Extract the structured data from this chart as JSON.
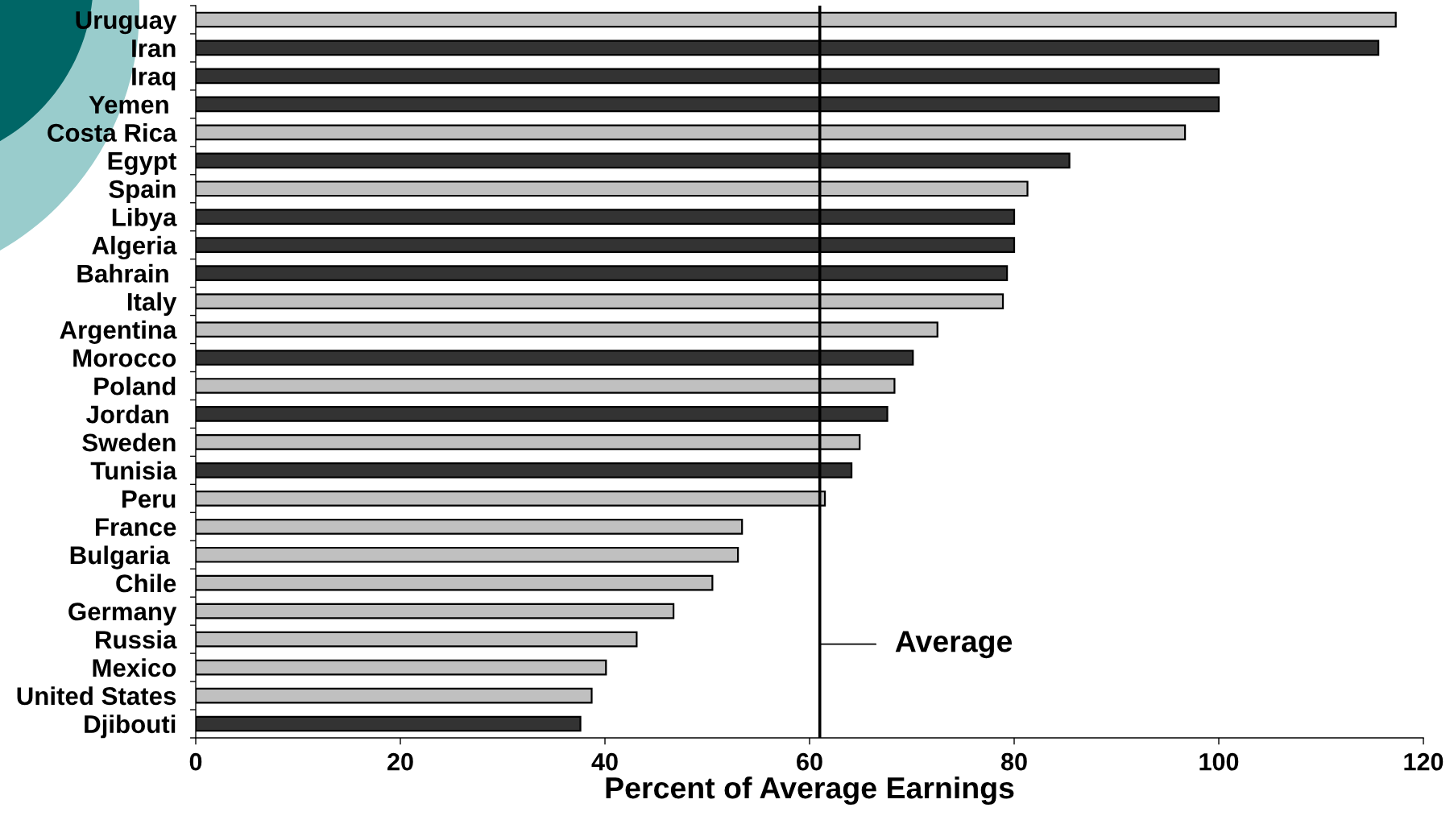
{
  "chart_data": {
    "type": "bar",
    "orientation": "horizontal",
    "xlabel": "Percent of Average Earnings",
    "categories": [
      "Uruguay",
      "Iran",
      "Iraq",
      "Yemen ",
      "Costa Rica",
      "Egypt",
      "Spain",
      "Libya",
      "Algeria",
      "Bahrain ",
      "Italy",
      "Argentina",
      "Morocco",
      "Poland",
      "Jordan ",
      "Sweden",
      "Tunisia",
      "Peru",
      "France",
      "Bulgaria ",
      "Chile",
      "Germany",
      "Russia",
      "Mexico",
      "United States",
      "Djibouti"
    ],
    "values": [
      117.3,
      115.6,
      100,
      100,
      96.7,
      85.4,
      81.3,
      80,
      80,
      79.3,
      78.9,
      72.5,
      70.1,
      68.3,
      67.6,
      64.9,
      64.1,
      61.5,
      53.4,
      53.0,
      50.5,
      46.7,
      43.1,
      40.1,
      38.7,
      37.6
    ],
    "colors": [
      "#c0c0c0",
      "#333333",
      "#333333",
      "#333333",
      "#c0c0c0",
      "#333333",
      "#c0c0c0",
      "#333333",
      "#333333",
      "#333333",
      "#c0c0c0",
      "#c0c0c0",
      "#333333",
      "#c0c0c0",
      "#333333",
      "#c0c0c0",
      "#333333",
      "#c0c0c0",
      "#c0c0c0",
      "#c0c0c0",
      "#c0c0c0",
      "#c0c0c0",
      "#c0c0c0",
      "#c0c0c0",
      "#c0c0c0",
      "#333333"
    ],
    "xlim": [
      0,
      120
    ],
    "xticks": [
      0,
      20,
      40,
      60,
      80,
      100,
      120
    ],
    "grid": false,
    "ref_lines": [
      {
        "axis": "x",
        "value": 61,
        "label": "Average",
        "color": "#000000"
      }
    ]
  }
}
